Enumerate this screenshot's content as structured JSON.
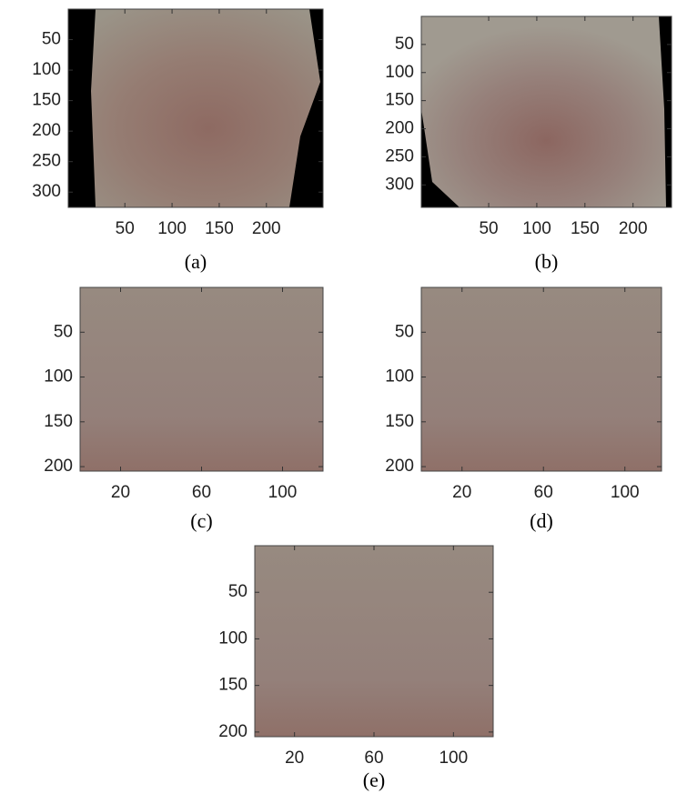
{
  "panels": [
    {
      "caption": "(a)",
      "xlim": [
        -10,
        260
      ],
      "ylim": [
        0,
        325
      ],
      "xticks": [
        50,
        100,
        150,
        200
      ],
      "yticks": [
        50,
        100,
        150,
        200,
        250,
        300
      ]
    },
    {
      "caption": "(b)",
      "xlim": [
        -20,
        240
      ],
      "ylim": [
        0,
        340
      ],
      "xticks": [
        50,
        100,
        150,
        200
      ],
      "yticks": [
        50,
        100,
        150,
        200,
        250,
        300
      ]
    },
    {
      "caption": "(c)",
      "xlim": [
        0,
        120
      ],
      "ylim": [
        0,
        205
      ],
      "xticks": [
        20,
        60,
        100
      ],
      "yticks": [
        50,
        100,
        150,
        200
      ]
    },
    {
      "caption": "(d)",
      "xlim": [
        0,
        118
      ],
      "ylim": [
        0,
        205
      ],
      "xticks": [
        20,
        60,
        100
      ],
      "yticks": [
        50,
        100,
        150,
        200
      ]
    },
    {
      "caption": "(e)",
      "xlim": [
        0,
        120
      ],
      "ylim": [
        0,
        205
      ],
      "xticks": [
        20,
        60,
        100
      ],
      "yticks": [
        50,
        100,
        150,
        200
      ]
    }
  ]
}
